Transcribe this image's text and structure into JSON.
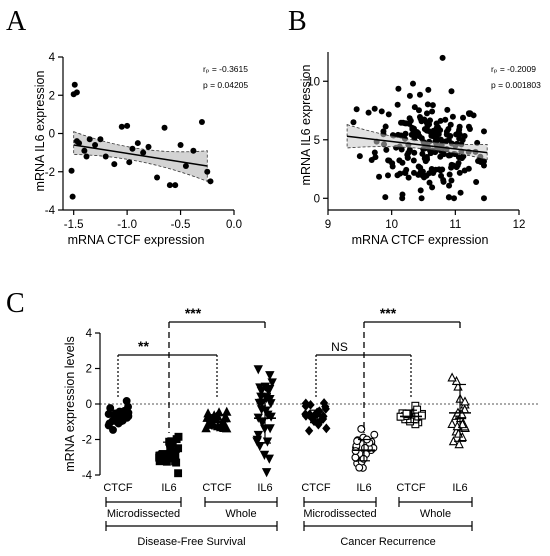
{
  "chart_data": [
    {
      "panel": "A",
      "type": "scatter",
      "xlabel": "mRNA CTCF expression",
      "ylabel": "mRNA IL6 expression",
      "xlim": [
        -1.6,
        0.0
      ],
      "ylim": [
        -4,
        4
      ],
      "xticks": [
        "-1.5",
        "-1.0",
        "-0.5",
        "0.0"
      ],
      "yticks": [
        "-4",
        "-2",
        "0",
        "2",
        "4"
      ],
      "stats": {
        "rp": "rₚ = -0.3615",
        "p": "p = 0.04205"
      },
      "points": [
        [
          -1.49,
          2.55
        ],
        [
          -1.47,
          2.15
        ],
        [
          -1.5,
          2.05
        ],
        [
          -1.52,
          -1.95
        ],
        [
          -1.51,
          -3.3
        ],
        [
          -1.47,
          -0.4
        ],
        [
          -1.45,
          -0.5
        ],
        [
          -1.4,
          -0.9
        ],
        [
          -1.38,
          -1.2
        ],
        [
          -1.35,
          -0.3
        ],
        [
          -1.3,
          -0.6
        ],
        [
          -1.25,
          -0.3
        ],
        [
          -1.2,
          -1.2
        ],
        [
          -1.12,
          -1.6
        ],
        [
          -1.05,
          0.35
        ],
        [
          -1.0,
          0.4
        ],
        [
          -0.98,
          -1.5
        ],
        [
          -0.95,
          -0.8
        ],
        [
          -0.9,
          -0.5
        ],
        [
          -0.85,
          -1.0
        ],
        [
          -0.8,
          -0.7
        ],
        [
          -0.72,
          -2.3
        ],
        [
          -0.65,
          0.3
        ],
        [
          -0.6,
          -2.7
        ],
        [
          -0.55,
          -2.7
        ],
        [
          -0.5,
          -0.6
        ],
        [
          -0.45,
          -1.7
        ],
        [
          -0.38,
          -0.9
        ],
        [
          -0.3,
          0.6
        ],
        [
          -0.25,
          -2.0
        ],
        [
          -0.22,
          -2.5
        ]
      ],
      "fit": {
        "x": [
          -1.5,
          -0.25
        ],
        "y": [
          -0.6,
          -1.7
        ],
        "ci_low_at_x0": -1.1,
        "ci_high_at_x0": 0.1,
        "ci_low_at_x1": -2.5,
        "ci_high_at_x1": -0.9
      }
    },
    {
      "panel": "B",
      "type": "scatter",
      "xlabel": "mRNA CTCF expression",
      "ylabel": "mRNA IL6 expression",
      "xlim": [
        9,
        12
      ],
      "ylim": [
        -1,
        12.5
      ],
      "xticks": [
        "9",
        "10",
        "11",
        "12"
      ],
      "yticks": [
        "0",
        "5",
        "10"
      ],
      "stats": {
        "rp": "rₚ = -0.2009",
        "p": "p = 0.001803"
      },
      "n_points": 220,
      "center": [
        10.6,
        4.5
      ],
      "fit": {
        "x": [
          9.3,
          11.5
        ],
        "y": [
          5.3,
          3.9
        ],
        "ci_low_at_x0": 4.3,
        "ci_high_at_x0": 6.3,
        "ci_low_at_x1": 3.3,
        "ci_high_at_x1": 4.6
      }
    },
    {
      "panel": "C",
      "type": "scatter",
      "ylabel": "mRNA expression levels",
      "ylim": [
        -4,
        4
      ],
      "yticks": [
        "-4",
        "-2",
        "0",
        "2",
        "4"
      ],
      "groups": [
        {
          "label": "CTCF",
          "marker": "circle-filled",
          "mean": -0.7,
          "sd": 0.35,
          "n": 25
        },
        {
          "label": "IL6",
          "marker": "square-filled",
          "mean": -2.7,
          "sd": 0.55,
          "n": 25
        },
        {
          "label": "CTCF",
          "marker": "triangle-up-filled",
          "mean": -1.0,
          "sd": 0.4,
          "n": 25
        },
        {
          "label": "IL6",
          "marker": "triangle-down-filled",
          "mean": -0.8,
          "sd": 1.4,
          "n": 30
        },
        {
          "label": "CTCF",
          "marker": "diamond-filled",
          "mean": -0.7,
          "sd": 0.35,
          "n": 25
        },
        {
          "label": "IL6",
          "marker": "circle-open",
          "mean": -2.6,
          "sd": 0.6,
          "n": 25
        },
        {
          "label": "CTCF",
          "marker": "square-open",
          "mean": -0.7,
          "sd": 0.35,
          "n": 25
        },
        {
          "label": "IL6",
          "marker": "triangle-up-open",
          "mean": -0.5,
          "sd": 1.6,
          "n": 25
        }
      ],
      "subgroups": [
        "Microdissected",
        "Whole",
        "Microdissected",
        "Whole"
      ],
      "supergroups": [
        "Disease-Free Survival",
        "Cancer Recurrence"
      ],
      "comparisons": [
        {
          "a": 0,
          "b": 2,
          "label": "**",
          "style": "dotted"
        },
        {
          "a": 1,
          "b": 3,
          "label": "***",
          "style": "dashed"
        },
        {
          "a": 4,
          "b": 6,
          "label": "NS",
          "style": "dotted"
        },
        {
          "a": 5,
          "b": 7,
          "label": "***",
          "style": "dashed"
        }
      ]
    }
  ],
  "panel_letters": [
    "A",
    "B",
    "C"
  ]
}
